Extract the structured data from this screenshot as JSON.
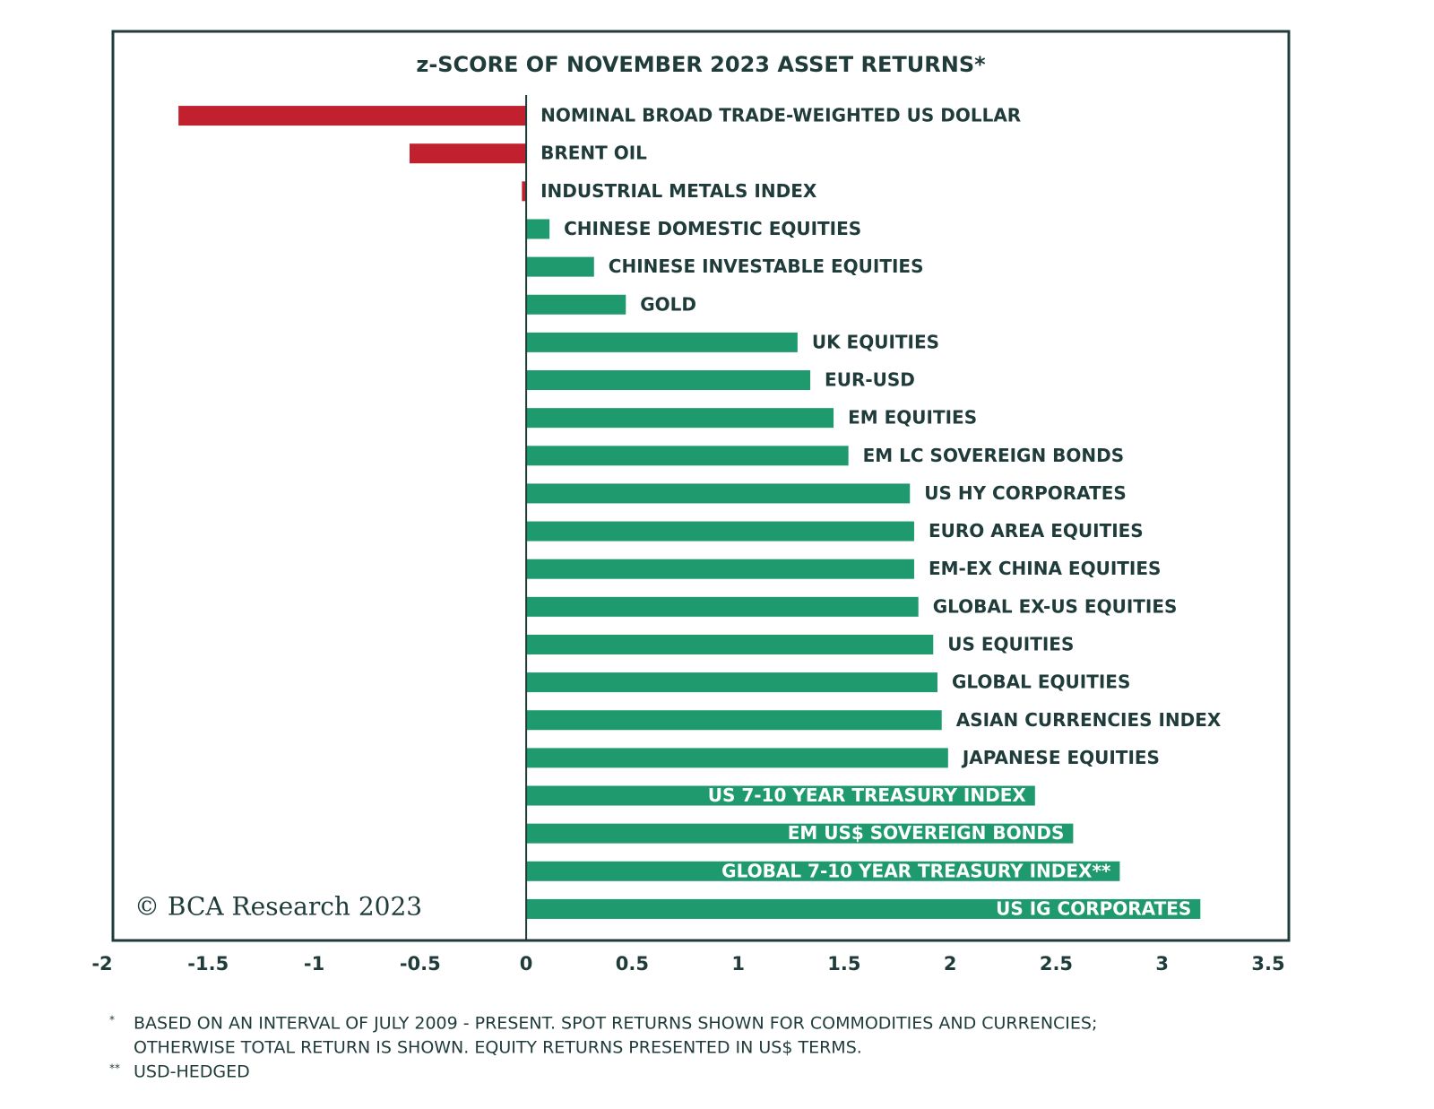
{
  "chart_data": {
    "type": "bar",
    "orientation": "horizontal",
    "title": "z-SCORE OF NOVEMBER 2023 ASSET RETURNS*",
    "categories": [
      "NOMINAL BROAD TRADE-WEIGHTED US DOLLAR",
      "BRENT OIL",
      "INDUSTRIAL METALS INDEX",
      "CHINESE DOMESTIC EQUITIES",
      "CHINESE INVESTABLE EQUITIES",
      "GOLD",
      "UK EQUITIES",
      "EUR-USD",
      "EM EQUITIES",
      "EM LC SOVEREIGN BONDS",
      "US HY CORPORATES",
      "EURO AREA EQUITIES",
      "EM-EX CHINA EQUITIES",
      "GLOBAL EX-US EQUITIES",
      "US EQUITIES",
      "GLOBAL EQUITIES",
      "ASIAN CURRENCIES INDEX",
      "JAPANESE EQUITIES",
      "US 7-10 YEAR TREASURY INDEX",
      "EM US$ SOVEREIGN BONDS",
      "GLOBAL 7-10 YEAR TREASURY INDEX**",
      "US IG CORPORATES"
    ],
    "values": [
      -1.64,
      -0.55,
      -0.02,
      0.11,
      0.32,
      0.47,
      1.28,
      1.34,
      1.45,
      1.52,
      1.81,
      1.83,
      1.83,
      1.85,
      1.92,
      1.94,
      1.96,
      1.99,
      2.4,
      2.58,
      2.8,
      3.18
    ],
    "positive_color": "#1f9a6e",
    "negative_color": "#c1202f",
    "xlim": [
      -2,
      3.5
    ],
    "xticks": [
      -2,
      -1.5,
      -1,
      -0.5,
      0,
      0.5,
      1,
      1.5,
      2,
      2.5,
      3,
      3.5
    ],
    "source": "© BCA Research 2023",
    "footnotes": [
      {
        "marker": "*",
        "lines": [
          "BASED ON AN INTERVAL OF JULY 2009 - PRESENT. SPOT RETURNS SHOWN FOR COMMODITIES AND CURRENCIES;",
          "OTHERWISE TOTAL RETURN IS SHOWN. EQUITY RETURNS PRESENTED IN US$ TERMS."
        ]
      },
      {
        "marker": "**",
        "lines": [
          "USD-HEDGED"
        ]
      }
    ]
  }
}
